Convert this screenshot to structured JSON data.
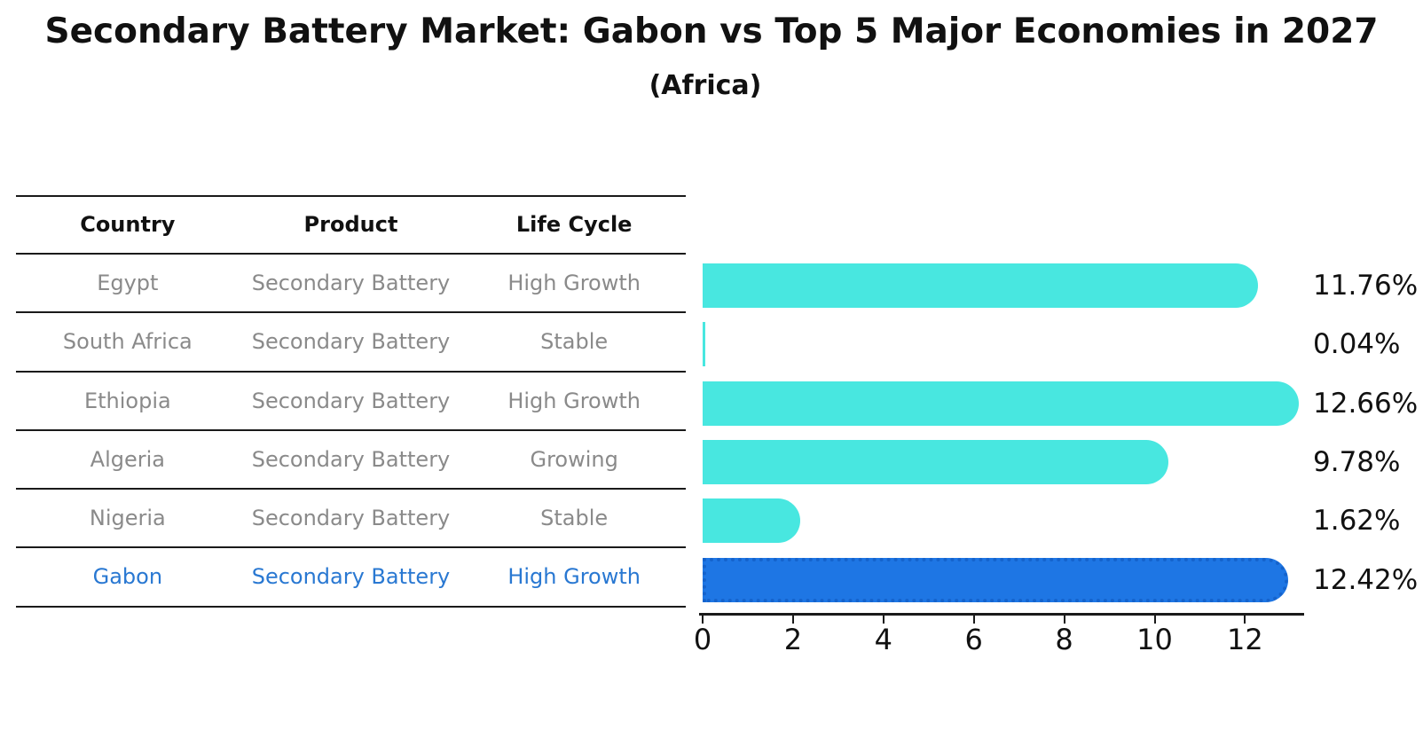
{
  "title": "Secondary Battery Market: Gabon vs Top 5 Major Economies in 2027",
  "subtitle": "(Africa)",
  "table": {
    "headers": [
      "Country",
      "Product",
      "Life Cycle"
    ],
    "rows": [
      {
        "country": "Egypt",
        "product": "Secondary Battery",
        "life_cycle": "High Growth",
        "highlight": false
      },
      {
        "country": "South Africa",
        "product": "Secondary Battery",
        "life_cycle": "Stable",
        "highlight": false
      },
      {
        "country": "Ethiopia",
        "product": "Secondary Battery",
        "life_cycle": "High Growth",
        "highlight": false
      },
      {
        "country": "Algeria",
        "product": "Secondary Battery",
        "life_cycle": "Growing",
        "highlight": false
      },
      {
        "country": "Nigeria",
        "product": "Secondary Battery",
        "life_cycle": "Stable",
        "highlight": false
      },
      {
        "country": "Gabon",
        "product": "Secondary Battery",
        "life_cycle": "High Growth",
        "highlight": true
      }
    ]
  },
  "chart_data": {
    "type": "bar",
    "orientation": "horizontal",
    "categories": [
      "Egypt",
      "South Africa",
      "Ethiopia",
      "Algeria",
      "Nigeria",
      "Gabon"
    ],
    "values": [
      11.76,
      0.04,
      12.66,
      9.78,
      1.62,
      12.42
    ],
    "value_labels": [
      "11.76%",
      "0.04%",
      "12.66%",
      "9.78%",
      "1.62%",
      "12.42%"
    ],
    "x_ticks": [
      "0",
      "2",
      "4",
      "6",
      "8",
      "10",
      "12"
    ],
    "x_tick_values": [
      0,
      2,
      4,
      6,
      8,
      10,
      12
    ],
    "xlim": [
      0,
      13.3
    ],
    "grid": false,
    "legend": "none",
    "highlight_index": 5
  },
  "colors": {
    "bar": "#48e7e0",
    "highlight_bar": "#1e76e4",
    "highlight_border": "#1563cc",
    "highlight_text": "#2978d2",
    "table_text": "#8a8a8a",
    "heading_text": "#111111",
    "line": "#1a1a1a"
  }
}
